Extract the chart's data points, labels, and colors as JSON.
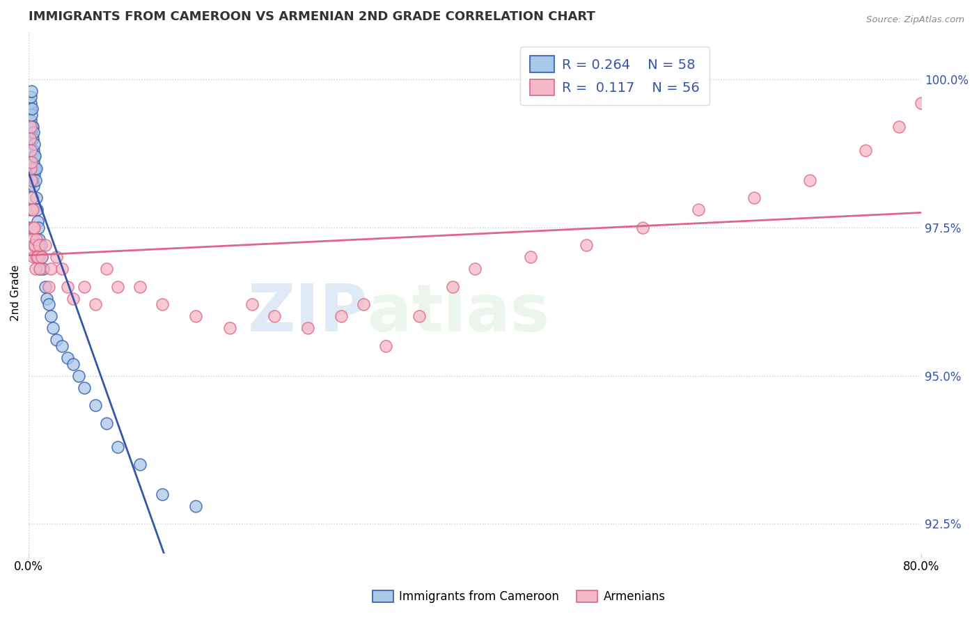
{
  "title": "IMMIGRANTS FROM CAMEROON VS ARMENIAN 2ND GRADE CORRELATION CHART",
  "source": "Source: ZipAtlas.com",
  "ylabel": "2nd Grade",
  "ylabel_right_vals": [
    100.0,
    97.5,
    95.0,
    92.5
  ],
  "blue_color": "#a8c8e8",
  "pink_color": "#f4b8c8",
  "trend_blue": "#3355aa",
  "trend_pink": "#dd6688",
  "watermark_zip": "ZIP",
  "watermark_atlas": "atlas",
  "blue_x": [
    0.05,
    0.08,
    0.1,
    0.12,
    0.15,
    0.15,
    0.18,
    0.2,
    0.2,
    0.22,
    0.25,
    0.25,
    0.28,
    0.3,
    0.3,
    0.3,
    0.32,
    0.35,
    0.35,
    0.38,
    0.4,
    0.4,
    0.42,
    0.45,
    0.48,
    0.5,
    0.5,
    0.55,
    0.55,
    0.6,
    0.65,
    0.7,
    0.75,
    0.8,
    0.85,
    0.9,
    0.95,
    1.0,
    1.1,
    1.2,
    1.3,
    1.5,
    1.6,
    1.8,
    2.0,
    2.2,
    2.5,
    3.0,
    3.5,
    4.0,
    4.5,
    5.0,
    6.0,
    7.0,
    8.0,
    10.0,
    12.0,
    15.0
  ],
  "blue_y": [
    97.5,
    98.2,
    97.8,
    98.5,
    99.0,
    99.3,
    99.5,
    99.6,
    99.7,
    99.8,
    99.1,
    99.4,
    98.8,
    99.0,
    99.2,
    99.5,
    98.5,
    99.0,
    99.2,
    98.3,
    98.8,
    99.1,
    98.2,
    98.6,
    98.4,
    98.7,
    98.9,
    98.5,
    98.7,
    98.3,
    98.5,
    98.0,
    97.8,
    97.6,
    97.5,
    97.3,
    97.0,
    96.8,
    97.2,
    97.0,
    96.8,
    96.5,
    96.3,
    96.2,
    96.0,
    95.8,
    95.6,
    95.5,
    95.3,
    95.2,
    95.0,
    94.8,
    94.5,
    94.2,
    93.8,
    93.5,
    93.0,
    92.8
  ],
  "pink_x": [
    0.1,
    0.15,
    0.18,
    0.2,
    0.22,
    0.25,
    0.28,
    0.3,
    0.32,
    0.35,
    0.38,
    0.4,
    0.42,
    0.45,
    0.5,
    0.55,
    0.6,
    0.65,
    0.7,
    0.8,
    0.9,
    1.0,
    1.2,
    1.5,
    1.8,
    2.0,
    2.5,
    3.0,
    3.5,
    4.0,
    5.0,
    6.0,
    7.0,
    8.0,
    10.0,
    12.0,
    15.0,
    18.0,
    20.0,
    22.0,
    25.0,
    28.0,
    30.0,
    32.0,
    35.0,
    38.0,
    40.0,
    45.0,
    50.0,
    55.0,
    60.0,
    65.0,
    70.0,
    75.0,
    78.0,
    80.0
  ],
  "pink_y": [
    99.0,
    98.5,
    98.8,
    99.2,
    98.6,
    98.3,
    97.8,
    98.0,
    97.5,
    97.8,
    97.3,
    97.5,
    97.0,
    97.2,
    97.5,
    97.2,
    96.8,
    97.0,
    97.3,
    97.0,
    97.2,
    96.8,
    97.0,
    97.2,
    96.5,
    96.8,
    97.0,
    96.8,
    96.5,
    96.3,
    96.5,
    96.2,
    96.8,
    96.5,
    96.5,
    96.2,
    96.0,
    95.8,
    96.2,
    96.0,
    95.8,
    96.0,
    96.2,
    95.5,
    96.0,
    96.5,
    96.8,
    97.0,
    97.2,
    97.5,
    97.8,
    98.0,
    98.3,
    98.8,
    99.2,
    99.6
  ],
  "xlim": [
    0,
    80
  ],
  "ylim": [
    92.0,
    100.8
  ],
  "figsize": [
    14.06,
    8.92
  ],
  "dpi": 100
}
